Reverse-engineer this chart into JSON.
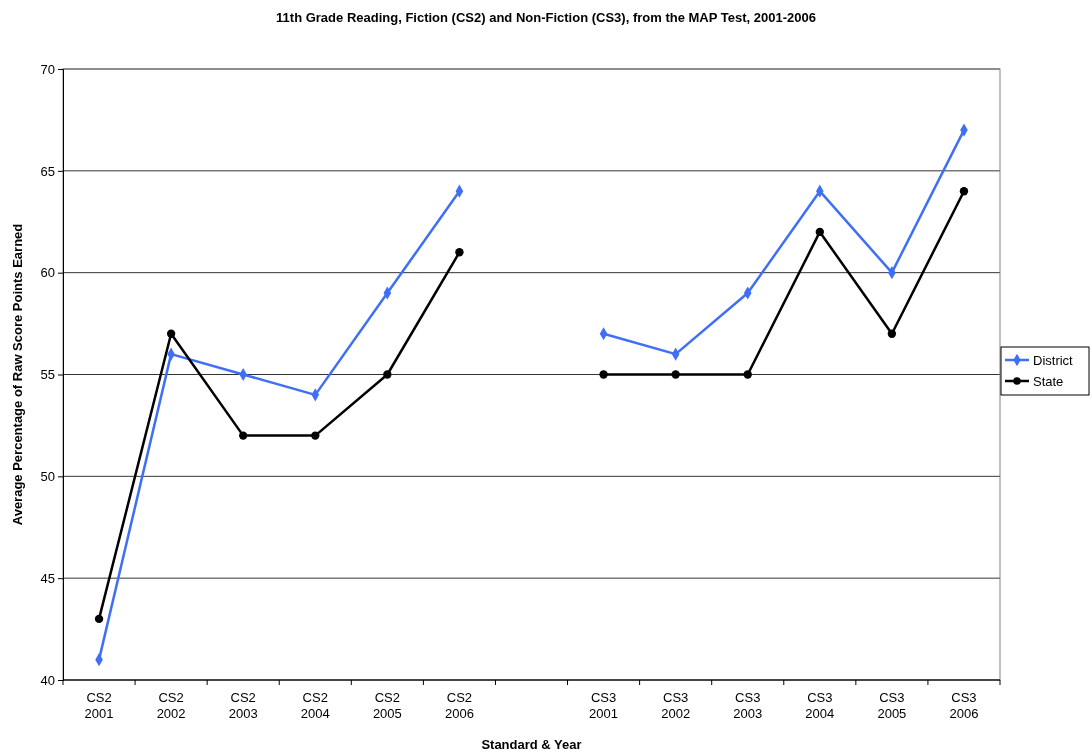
{
  "chart_data": {
    "type": "line",
    "title": "11th Grade Reading, Fiction (CS2) and Non-Fiction (CS3), from the MAP Test, 2001-2006",
    "xlabel": "Standard & Year",
    "ylabel": "Average Percentage of Raw Score Points Earned",
    "categories": [
      "CS2 2001",
      "CS2 2002",
      "CS2 2003",
      "CS2 2004",
      "CS2 2005",
      "CS2 2006",
      null,
      "CS3 2001",
      "CS3 2002",
      "CS3 2003",
      "CS3 2004",
      "CS3 2005",
      "CS3 2006"
    ],
    "series": [
      {
        "name": "District",
        "color": "#3f6ff5",
        "marker": "diamond",
        "values": [
          41,
          56,
          55,
          54,
          59,
          64,
          null,
          57,
          56,
          59,
          64,
          60,
          67
        ]
      },
      {
        "name": "State",
        "color": "#000000",
        "marker": "circle",
        "values": [
          43,
          57,
          52,
          52,
          55,
          61,
          null,
          55,
          55,
          55,
          62,
          57,
          64
        ]
      }
    ],
    "ylim": [
      40,
      70
    ],
    "yticks": [
      40,
      45,
      50,
      55,
      60,
      65,
      70
    ],
    "grid": "y",
    "legend": "right"
  }
}
